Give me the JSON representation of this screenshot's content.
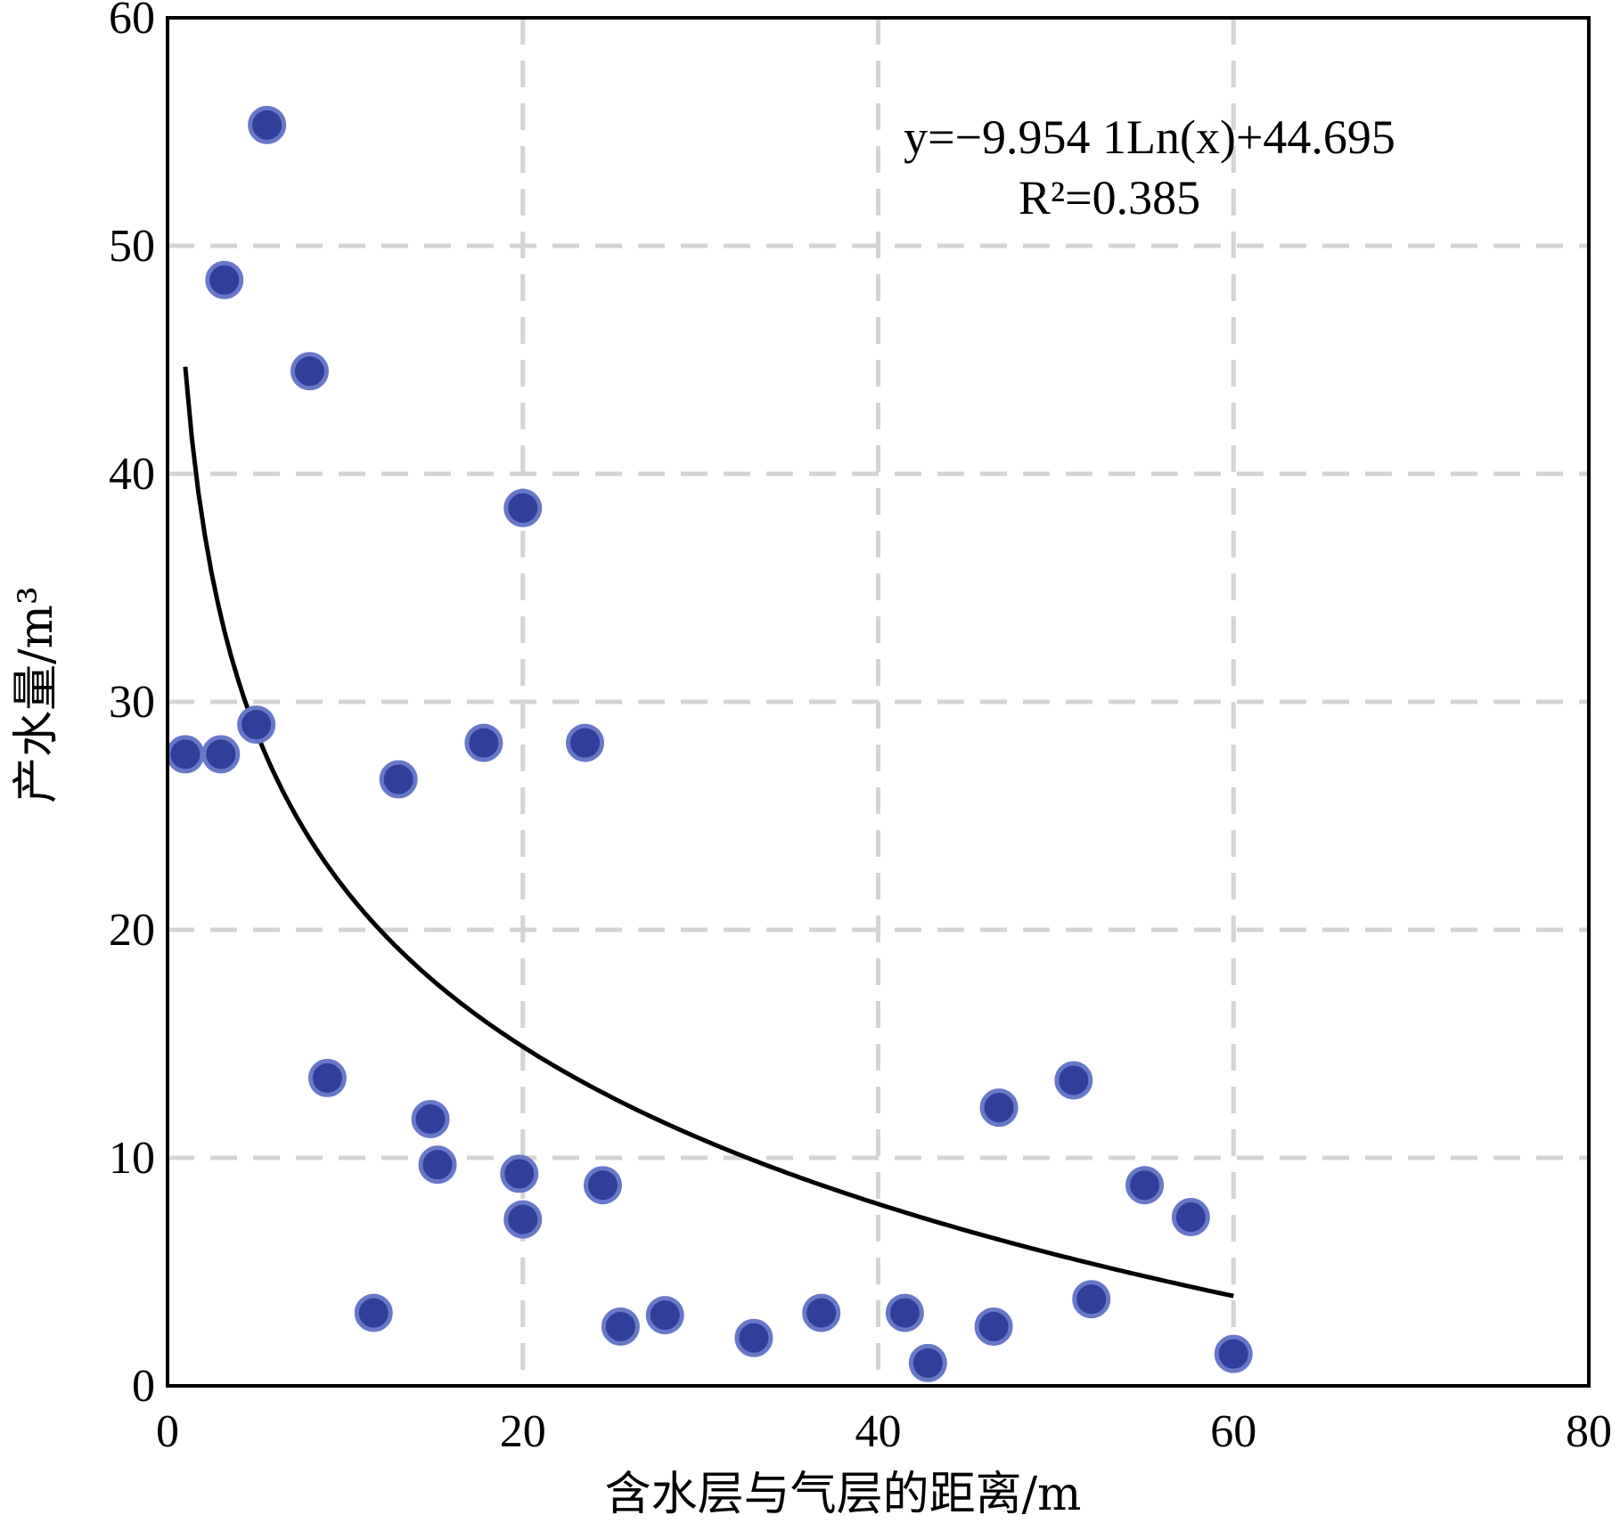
{
  "chart_data": {
    "type": "scatter",
    "xlabel": "含水层与气层的距离/m",
    "ylabel": "产水量/m³",
    "xlim": [
      0,
      80
    ],
    "ylim": [
      0,
      60
    ],
    "x_ticks": [
      0,
      20,
      40,
      60,
      80
    ],
    "y_ticks": [
      0,
      10,
      20,
      30,
      40,
      50,
      60
    ],
    "grid": true,
    "grid_style": "dashed",
    "point_color": "#2f3f9a",
    "point_edge_color": "#6878c8",
    "trend_color": "#000000",
    "series": [
      {
        "type": "scatter",
        "points": [
          [
            1,
            27.7
          ],
          [
            3,
            27.7
          ],
          [
            5,
            29.0
          ],
          [
            3.2,
            48.5
          ],
          [
            5.6,
            55.3
          ],
          [
            8,
            44.5
          ],
          [
            9,
            13.5
          ],
          [
            11.6,
            3.2
          ],
          [
            13,
            26.6
          ],
          [
            14.8,
            11.7
          ],
          [
            15.2,
            9.7
          ],
          [
            17.8,
            28.2
          ],
          [
            19.8,
            9.3
          ],
          [
            20,
            38.5
          ],
          [
            20,
            7.3
          ],
          [
            23.5,
            28.2
          ],
          [
            24.5,
            8.8
          ],
          [
            25.5,
            2.6
          ],
          [
            28,
            3.1
          ],
          [
            33,
            2.1
          ],
          [
            36.8,
            3.2
          ],
          [
            41.5,
            3.2
          ],
          [
            42.8,
            1.0
          ],
          [
            46.5,
            2.6
          ],
          [
            46.8,
            12.2
          ],
          [
            51,
            13.4
          ],
          [
            52,
            3.8
          ],
          [
            55,
            8.8
          ],
          [
            57.6,
            7.4
          ],
          [
            60,
            1.4
          ]
        ]
      },
      {
        "type": "line",
        "equation": "y=-9.9541Ln(x)+44.695",
        "coefficients": {
          "a": -9.9541,
          "b": 44.695
        },
        "x_range": [
          1,
          60
        ]
      }
    ],
    "annotations": {
      "equation_label": "y=−9.954 1Ln(x)+44.695",
      "r2_label": "R²=0.385"
    }
  }
}
